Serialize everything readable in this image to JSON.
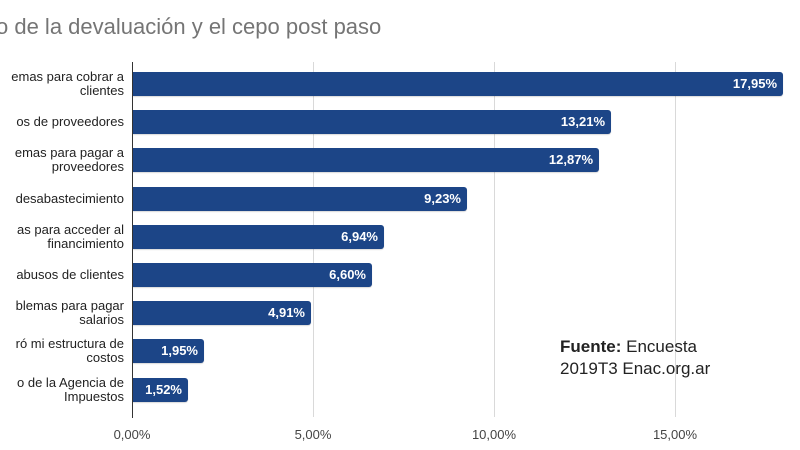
{
  "title": "o de la devaluación y el cepo post paso",
  "source": {
    "label": "Fuente:",
    "text_line1": " Encuesta",
    "text_line2": "2019T3 Enac.org.ar"
  },
  "colors": {
    "bar": "#1c4587",
    "label_text": "#ffffff",
    "gridline": "#d9d9d9",
    "title": "#757575"
  },
  "chart_data": {
    "type": "bar",
    "orientation": "horizontal",
    "title": "o de la devaluación y el cepo post paso",
    "categories": [
      [
        "emas para cobrar a",
        "clientes"
      ],
      [
        "os de proveedores"
      ],
      [
        "emas para pagar a",
        "proveedores"
      ],
      [
        "desabastecimiento"
      ],
      [
        "as para acceder al",
        "financimiento"
      ],
      [
        "abusos de clientes"
      ],
      [
        "blemas para pagar",
        "salarios"
      ],
      [
        "ró mi estructura de",
        "costos"
      ],
      [
        "o de la Agencia de",
        "Impuestos"
      ]
    ],
    "values": [
      17.95,
      13.21,
      12.87,
      9.23,
      6.94,
      6.6,
      4.91,
      1.95,
      1.52
    ],
    "value_labels": [
      "17,95%",
      "13,21%",
      "12,87%",
      "9,23%",
      "6,94%",
      "6,60%",
      "4,91%",
      "1,95%",
      "1,52%"
    ],
    "xlabel": "",
    "ylabel": "",
    "xlim": [
      0,
      18
    ],
    "x_ticks": [
      0,
      5,
      10,
      15
    ],
    "x_tick_labels": [
      "0,00%",
      "5,00%",
      "10,00%",
      "15,00%"
    ],
    "grid": true,
    "legend": null,
    "annotation": "Fuente: Encuesta 2019T3 Enac.org.ar"
  }
}
